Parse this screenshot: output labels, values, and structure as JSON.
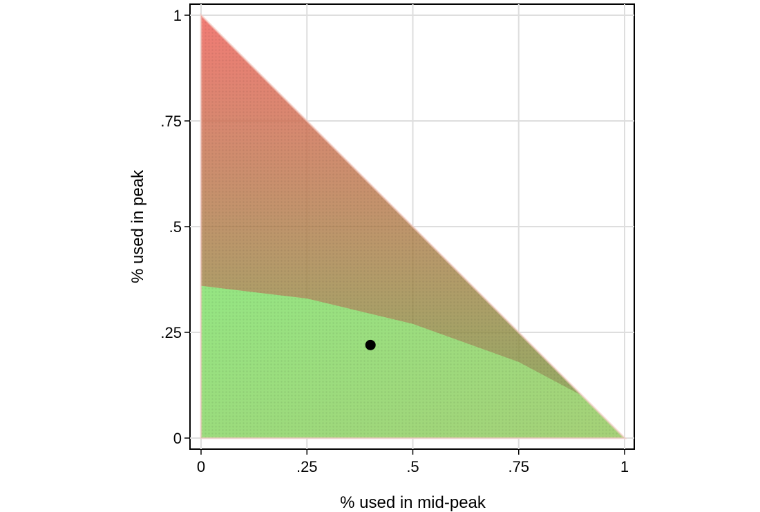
{
  "chart_data": {
    "type": "scatter",
    "title": "",
    "xlabel": "% used in mid-peak",
    "ylabel": "% used in peak",
    "xlim": [
      0,
      1
    ],
    "ylim": [
      0,
      1
    ],
    "grid": true,
    "x_ticks": [
      {
        "value": 0,
        "label": "0"
      },
      {
        "value": 0.25,
        "label": ".25"
      },
      {
        "value": 0.5,
        "label": ".5"
      },
      {
        "value": 0.75,
        "label": ".75"
      },
      {
        "value": 1,
        "label": "1"
      }
    ],
    "y_ticks": [
      {
        "value": 0,
        "label": "0"
      },
      {
        "value": 0.25,
        "label": ".25"
      },
      {
        "value": 0.5,
        "label": ".5"
      },
      {
        "value": 0.75,
        "label": ".75"
      },
      {
        "value": 1,
        "label": "1"
      }
    ],
    "region": {
      "description_shape": "triangle simplex x + y <= 1",
      "vertices": [
        [
          0,
          0
        ],
        [
          1,
          0
        ],
        [
          0,
          1
        ]
      ],
      "color_low": "#7ef07a",
      "color_high": "#e8524a",
      "boundary_curve": [
        [
          0,
          0.36
        ],
        [
          0.25,
          0.33
        ],
        [
          0.5,
          0.27
        ],
        [
          0.75,
          0.18
        ],
        [
          0.9,
          0.1
        ]
      ]
    },
    "highlight_point": {
      "x": 0.4,
      "y": 0.22,
      "color": "#000000"
    }
  }
}
